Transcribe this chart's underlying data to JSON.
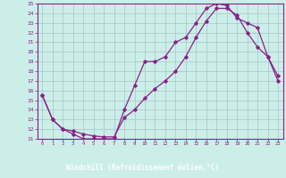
{
  "xlabel": "Windchill (Refroidissement éolien,°C)",
  "bg_color": "#cceee8",
  "line_color": "#882288",
  "grid_color": "#aacccc",
  "xlabel_bg": "#882288",
  "xlabel_fg": "#ffffff",
  "xlim": [
    -0.5,
    23.5
  ],
  "ylim": [
    11,
    25
  ],
  "xticks": [
    0,
    1,
    2,
    3,
    4,
    5,
    6,
    7,
    8,
    9,
    10,
    11,
    12,
    13,
    14,
    15,
    16,
    17,
    18,
    19,
    20,
    21,
    22,
    23
  ],
  "yticks": [
    11,
    12,
    13,
    14,
    15,
    16,
    17,
    18,
    19,
    20,
    21,
    22,
    23,
    24,
    25
  ],
  "curve1_x": [
    0,
    1,
    2,
    3,
    4,
    5,
    6,
    7,
    8,
    9,
    10,
    11,
    12,
    13,
    14,
    15,
    16,
    17,
    18,
    19,
    20,
    21,
    22,
    23
  ],
  "curve1_y": [
    15.5,
    13.0,
    12.0,
    11.5,
    11.0,
    11.0,
    11.0,
    11.0,
    14.0,
    16.5,
    19.0,
    19.0,
    19.5,
    21.0,
    21.5,
    23.0,
    24.5,
    25.0,
    24.8,
    23.5,
    23.0,
    22.5,
    19.5,
    17.5
  ],
  "curve2_x": [
    0,
    1,
    2,
    3,
    4,
    5,
    6,
    7,
    8,
    9,
    10,
    11,
    12,
    13,
    14,
    15,
    16,
    17,
    18,
    19,
    20,
    21,
    22,
    23
  ],
  "curve2_y": [
    15.5,
    13.0,
    12.0,
    11.8,
    11.5,
    11.3,
    11.2,
    11.2,
    13.2,
    14.0,
    15.2,
    16.2,
    17.0,
    18.0,
    19.5,
    21.5,
    23.2,
    24.5,
    24.5,
    23.8,
    22.0,
    20.5,
    19.5,
    17.0
  ]
}
